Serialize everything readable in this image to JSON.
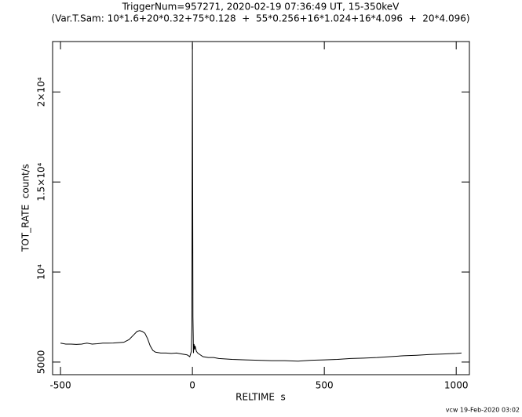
{
  "chart_data": {
    "type": "line",
    "title": "TriggerNum=957271, 2020-02-19 07:36:49 UT, 15-350keV",
    "subtitle": "(Var.T.Sam: 10*1.6+20*0.32+75*0.128  +  55*0.256+16*1.024+16*4.096  +  20*4.096)",
    "x_label": "RELTIME  s",
    "y_label": "TOT_RATE  count/s",
    "footer": "vcw 19-Feb-2020 03:02",
    "x": [
      -500,
      -480,
      -460,
      -440,
      -420,
      -400,
      -380,
      -360,
      -340,
      -320,
      -300,
      -280,
      -260,
      -240,
      -220,
      -210,
      -200,
      -190,
      -180,
      -170,
      -160,
      -150,
      -140,
      -120,
      -100,
      -80,
      -60,
      -40,
      -20,
      -10,
      -4,
      -2,
      0,
      2,
      4,
      6,
      8,
      10,
      15,
      20,
      30,
      40,
      60,
      80,
      100,
      150,
      200,
      250,
      300,
      350,
      400,
      450,
      500,
      550,
      600,
      650,
      700,
      750,
      800,
      850,
      900,
      950,
      1000,
      1020
    ],
    "series": [
      {
        "name": "TOT_RATE",
        "color": "#000000",
        "values": [
          6050,
          6000,
          6000,
          5980,
          6000,
          6050,
          6000,
          6020,
          6050,
          6050,
          6060,
          6080,
          6100,
          6250,
          6550,
          6700,
          6750,
          6700,
          6600,
          6300,
          5900,
          5650,
          5550,
          5500,
          5500,
          5480,
          5500,
          5450,
          5400,
          5300,
          5600,
          7000,
          22700,
          7500,
          5500,
          6000,
          5700,
          5900,
          5600,
          5500,
          5400,
          5300,
          5250,
          5250,
          5200,
          5150,
          5120,
          5100,
          5080,
          5080,
          5050,
          5100,
          5120,
          5150,
          5200,
          5220,
          5250,
          5300,
          5350,
          5380,
          5420,
          5450,
          5480,
          5500
        ]
      }
    ],
    "xlim": [
      -530,
      1050
    ],
    "ylim": [
      4300,
      22800
    ],
    "xticks": [
      -500,
      0,
      500,
      1000
    ],
    "yticks": [
      5000,
      {
        "value": 10000,
        "label": "10⁴"
      },
      {
        "value": 15000,
        "label": "1.5×10⁴"
      },
      {
        "value": 20000,
        "label": "2×10⁴"
      }
    ]
  }
}
